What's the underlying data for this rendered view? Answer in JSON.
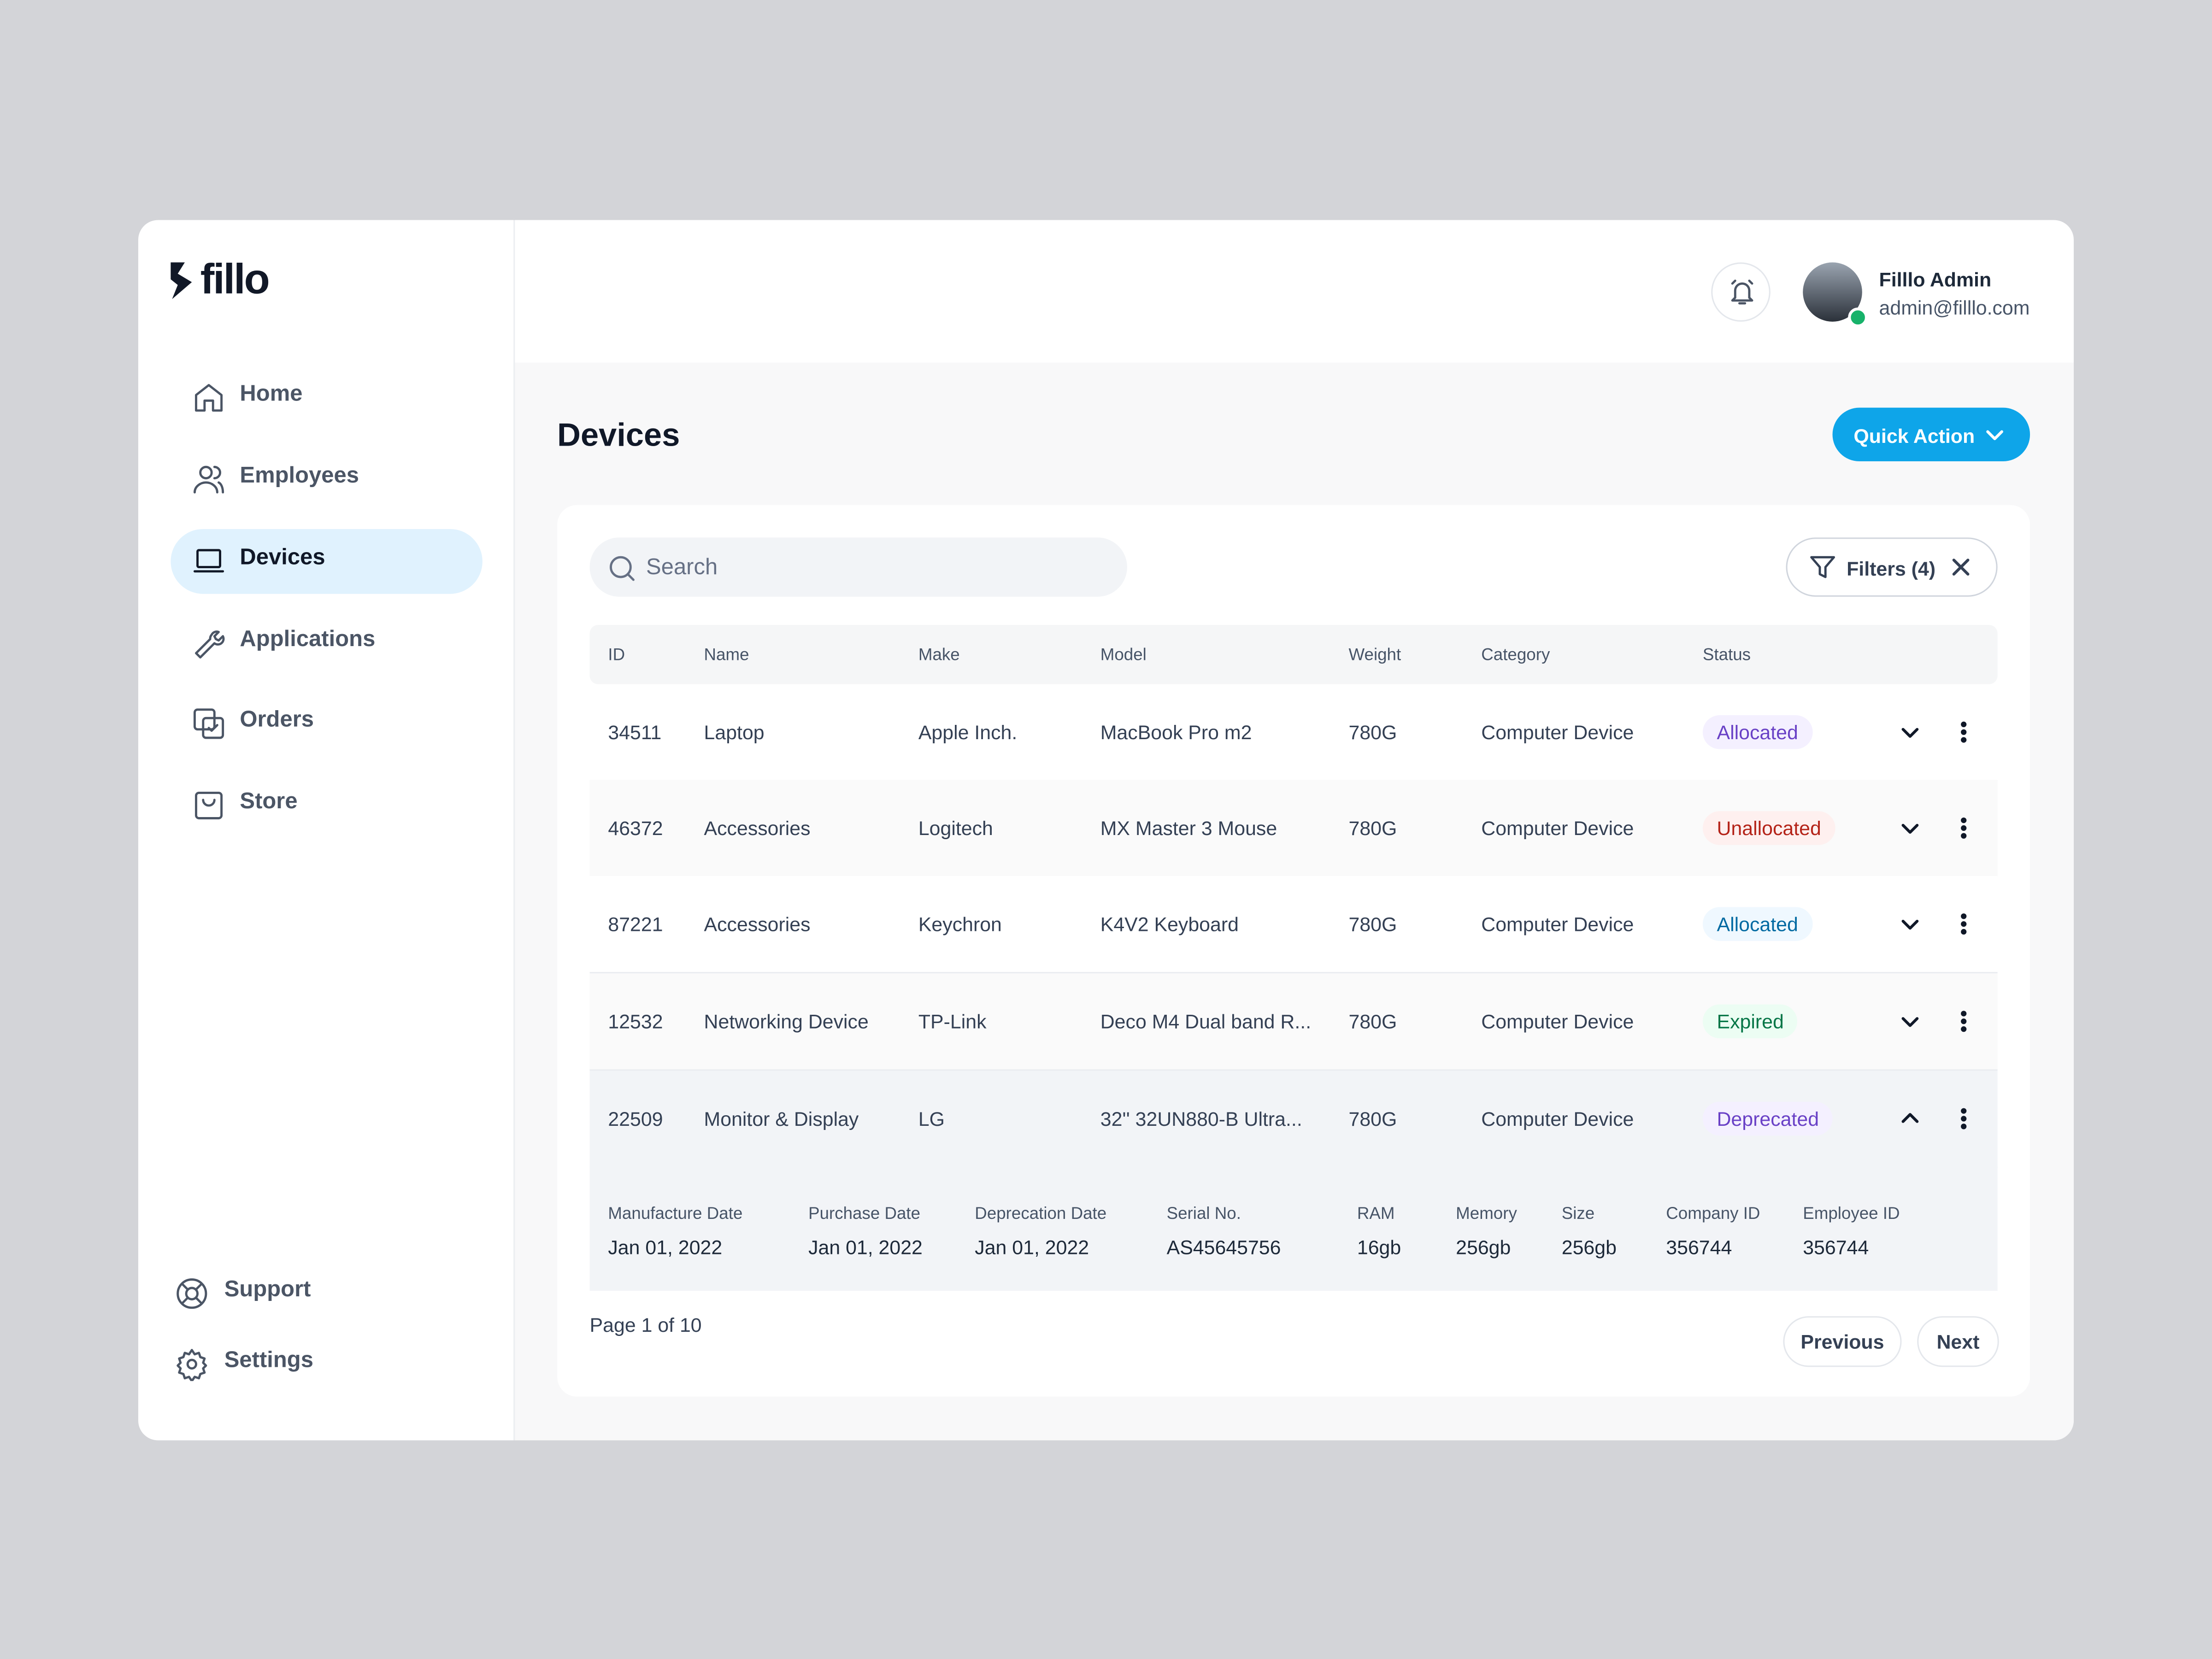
{
  "brand": "fillo",
  "nav": {
    "items": [
      "Home",
      "Employees",
      "Devices",
      "Applications",
      "Orders",
      "Store"
    ],
    "footer": [
      "Support",
      "Settings"
    ]
  },
  "user": {
    "name": "Filllo Admin",
    "email": "admin@filllo.com"
  },
  "page": {
    "title": "Devices",
    "quick_action": "Quick Action"
  },
  "toolbar": {
    "search": "Search",
    "filters": "Filters (4)"
  },
  "table": {
    "headers": [
      "ID",
      "Name",
      "Make",
      "Model",
      "Weight",
      "Category",
      "Status"
    ],
    "rows": [
      [
        "34511",
        "Laptop",
        "Apple Inch.",
        "MacBook Pro m2",
        "780G",
        "Computer Device",
        "Allocated"
      ],
      [
        "46372",
        "Accessories",
        "Logitech",
        "MX Master 3 Mouse",
        "780G",
        "Computer Device",
        "Unallocated"
      ],
      [
        "87221",
        "Accessories",
        "Keychron",
        "K4V2 Keyboard",
        "780G",
        "Computer Device",
        "Allocated"
      ],
      [
        "12532",
        "Networking Device",
        "TP-Link",
        "Deco M4 Dual band R...",
        "780G",
        "Computer Device",
        "Expired"
      ],
      [
        "22509",
        "Monitor & Display",
        "LG",
        "32'' 32UN880-B Ultra...",
        "780G",
        "Computer Device",
        "Deprecated"
      ]
    ],
    "status_colors": [
      [
        "#6941c6",
        "#f4f0ff"
      ],
      [
        "#b42318",
        "#fef0ef"
      ],
      [
        "#026aa2",
        "#eff8ff"
      ],
      [
        "#067647",
        "#ecfdf3"
      ],
      [
        "#6941c6",
        "#f4f0ff"
      ]
    ],
    "details": {
      "labels": [
        "Manufacture Date",
        "Purchase Date",
        "Deprecation Date",
        "Serial No.",
        "RAM",
        "Memory",
        "Size",
        "Company ID",
        "Employee ID"
      ],
      "values": [
        "Jan 01, 2022",
        "Jan 01, 2022",
        "Jan 01, 2022",
        "AS45645756",
        "16gb",
        "256gb",
        "256gb",
        "356744",
        "356744"
      ]
    }
  },
  "pagination": {
    "label": "Page 1 of 10",
    "previous": "Previous",
    "next": "Next"
  }
}
